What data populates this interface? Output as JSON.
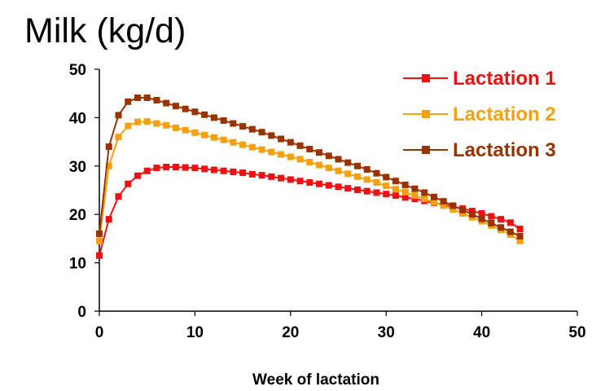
{
  "chart_data": {
    "type": "line",
    "title": "Milk (kg/d)",
    "xlabel": "Week of  lactation",
    "ylabel": "",
    "xlim": [
      0,
      50
    ],
    "ylim": [
      0,
      50
    ],
    "xticks": [
      0,
      10,
      20,
      30,
      40,
      50
    ],
    "yticks": [
      0,
      10,
      20,
      30,
      40,
      50
    ],
    "grid": false,
    "legend_position": "top-right",
    "x": [
      0,
      1,
      2,
      3,
      4,
      5,
      6,
      7,
      8,
      9,
      10,
      11,
      12,
      13,
      14,
      15,
      16,
      17,
      18,
      19,
      20,
      21,
      22,
      23,
      24,
      25,
      26,
      27,
      28,
      29,
      30,
      31,
      32,
      33,
      34,
      35,
      36,
      37,
      38,
      39,
      40,
      41,
      42,
      43,
      44
    ],
    "series": [
      {
        "name": "Lactation 1",
        "color": "#ee1111",
        "values": [
          11.5,
          19,
          23.7,
          26.3,
          28,
          29,
          29.6,
          29.8,
          29.8,
          29.7,
          29.6,
          29.4,
          29.2,
          29,
          28.8,
          28.6,
          28.3,
          28.1,
          27.8,
          27.5,
          27.2,
          26.9,
          26.6,
          26.3,
          26,
          25.7,
          25.4,
          25.1,
          24.8,
          24.5,
          24.2,
          23.9,
          23.5,
          23.2,
          22.8,
          22.4,
          22,
          21.6,
          21.2,
          20.7,
          20.2,
          19.6,
          19,
          18.3,
          17
        ]
      },
      {
        "name": "Lactation 2",
        "color": "#f5a00f",
        "values": [
          14.5,
          30,
          36,
          38.3,
          39.1,
          39.2,
          38.8,
          38.4,
          37.9,
          37.4,
          36.9,
          36.4,
          35.9,
          35.4,
          34.9,
          34.4,
          33.9,
          33.4,
          32.9,
          32.4,
          31.9,
          31.4,
          30.8,
          30.2,
          29.6,
          29,
          28.4,
          27.8,
          27.2,
          26.6,
          25.9,
          25.2,
          24.6,
          23.9,
          23.2,
          22.5,
          21.8,
          21,
          20.2,
          19.4,
          18.6,
          17.7,
          16.8,
          15.8,
          14.5
        ]
      },
      {
        "name": "Lactation 3",
        "color": "#993300",
        "values": [
          16,
          34,
          40.5,
          43.3,
          44.1,
          44.1,
          43.6,
          43,
          42.4,
          41.8,
          41.2,
          40.6,
          40,
          39.4,
          38.8,
          38.2,
          37.6,
          37,
          36.3,
          35.6,
          34.9,
          34.2,
          33.5,
          32.8,
          32.1,
          31.4,
          30.7,
          30,
          29.3,
          28.5,
          27.7,
          26.9,
          26.1,
          25.3,
          24.5,
          23.6,
          22.7,
          21.8,
          20.9,
          20,
          19.1,
          18.2,
          17.3,
          16.4,
          15.5
        ]
      }
    ]
  }
}
